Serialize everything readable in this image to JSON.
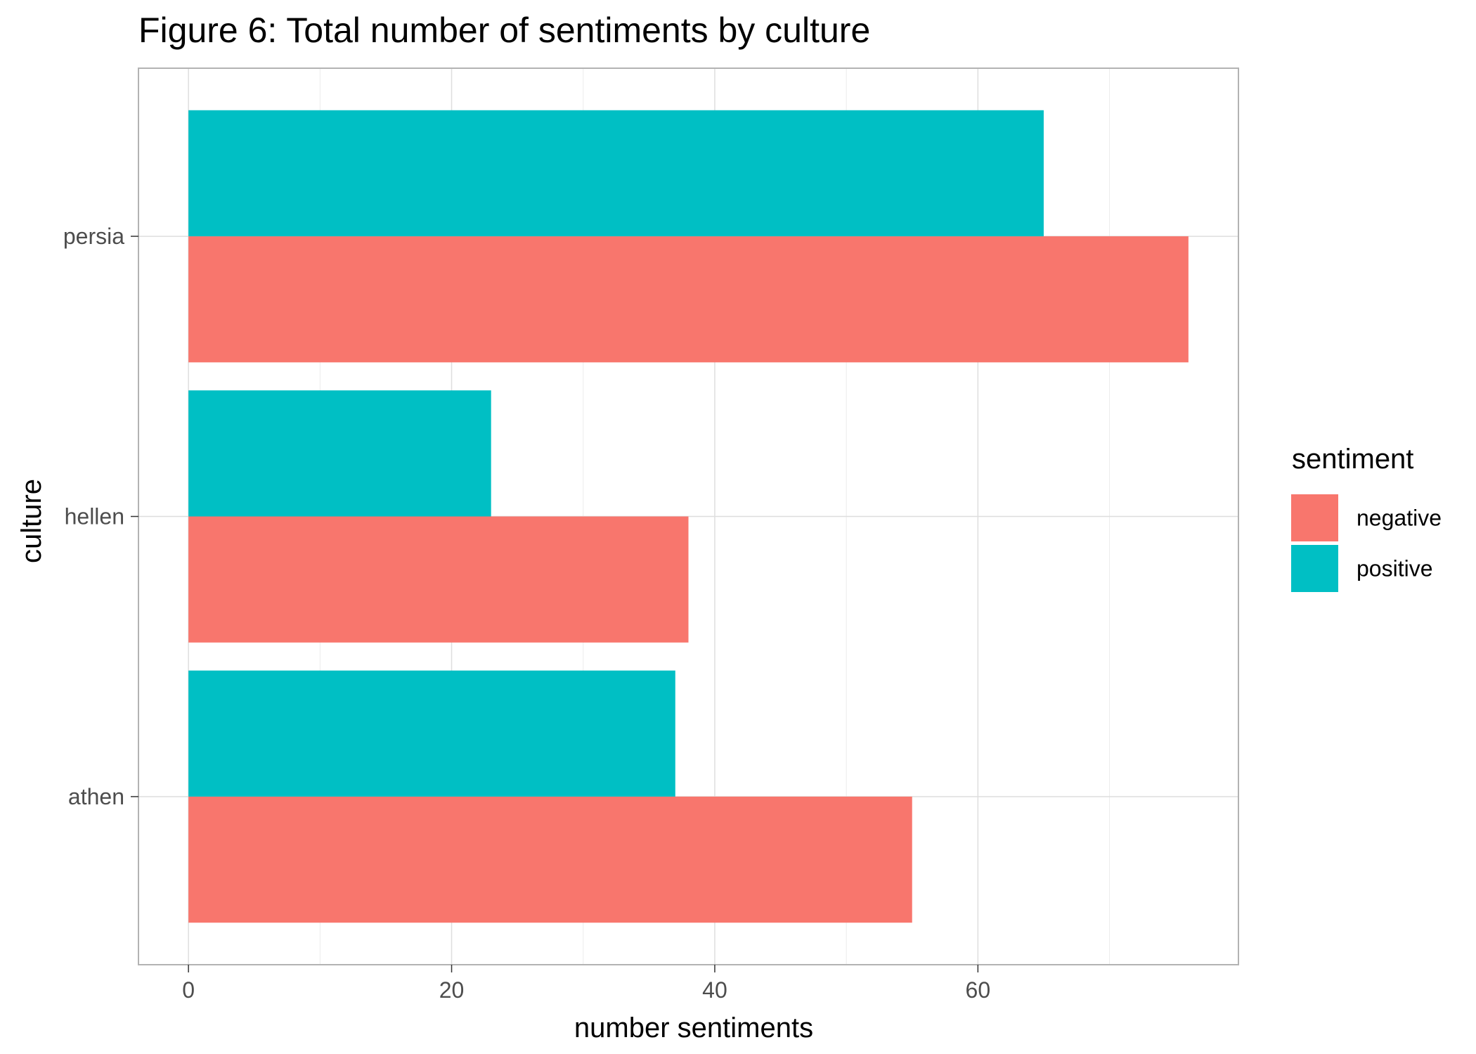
{
  "chart_data": {
    "type": "bar",
    "orientation": "horizontal",
    "title": "Figure 6: Total number of sentiments by culture",
    "xlabel": "number sentiments",
    "ylabel": "culture",
    "categories": [
      "athen",
      "hellen",
      "persia"
    ],
    "series": [
      {
        "name": "negative",
        "values": [
          55,
          38,
          76
        ],
        "color": "#F8766D"
      },
      {
        "name": "positive",
        "values": [
          37,
          23,
          65
        ],
        "color": "#00BFC4"
      }
    ],
    "xlim": [
      -3.8,
      79.8
    ],
    "xticks": [
      0,
      20,
      40,
      60
    ],
    "grid": true,
    "legend": {
      "title": "sentiment",
      "position": "right",
      "entries": [
        "negative",
        "positive"
      ]
    }
  }
}
